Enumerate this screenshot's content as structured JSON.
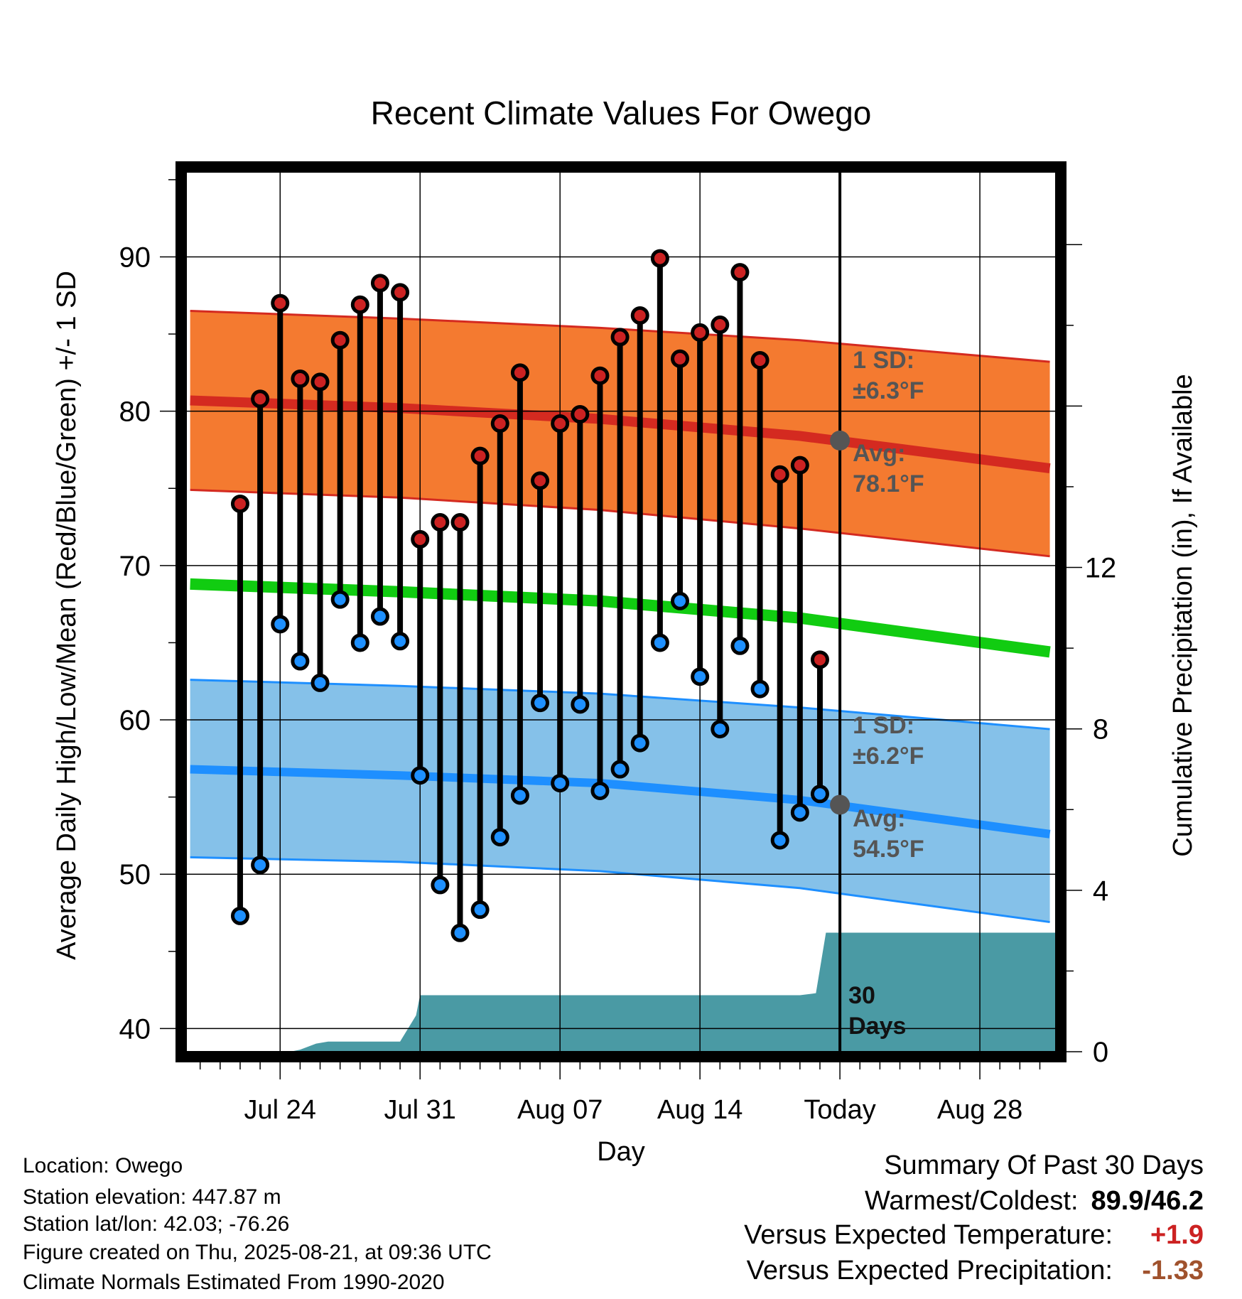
{
  "chart_data": {
    "type": "line",
    "title": "Recent Climate Values For Owego",
    "xlabel": "Day",
    "ylabel": "Average Daily High/Low/Mean (Red/Blue/Green) +/- 1 SD",
    "y2label": "Cumulative Precipitation (in), If Available",
    "ylim": [
      38.5,
      95.5
    ],
    "y2lim": [
      0,
      21.8
    ],
    "yticks": [
      40,
      50,
      60,
      70,
      80,
      90
    ],
    "y2ticks": [
      0,
      4,
      8,
      12
    ],
    "x_tick_labels": [
      "Jul 24",
      "Jul 31",
      "Aug 07",
      "Aug 14",
      "Today",
      "Aug 28"
    ],
    "x_tick_days": [
      24,
      31,
      38,
      45,
      52,
      59
    ],
    "xlim": [
      19.3,
      62.8
    ],
    "today_day": 52,
    "grid": true,
    "days": [
      "Jul 22",
      "Jul 23",
      "Jul 24",
      "Jul 25",
      "Jul 26",
      "Jul 27",
      "Jul 28",
      "Jul 29",
      "Jul 30",
      "Jul 31",
      "Aug 01",
      "Aug 02",
      "Aug 03",
      "Aug 04",
      "Aug 05",
      "Aug 06",
      "Aug 07",
      "Aug 08",
      "Aug 09",
      "Aug 10",
      "Aug 11",
      "Aug 12",
      "Aug 13",
      "Aug 14",
      "Aug 15",
      "Aug 16",
      "Aug 17",
      "Aug 18",
      "Aug 19",
      "Aug 20"
    ],
    "day_index": [
      22,
      23,
      24,
      25,
      26,
      27,
      28,
      29,
      30,
      31,
      32,
      33,
      34,
      35,
      36,
      37,
      38,
      39,
      40,
      41,
      42,
      43,
      44,
      45,
      46,
      47,
      48,
      49,
      50,
      51
    ],
    "series": [
      {
        "name": "High",
        "color": "#cc2222",
        "values": [
          74.0,
          80.8,
          87.0,
          82.1,
          81.9,
          84.6,
          86.9,
          88.3,
          87.7,
          71.7,
          72.8,
          72.8,
          77.1,
          79.2,
          82.5,
          75.5,
          79.2,
          79.8,
          82.3,
          84.8,
          86.2,
          89.9,
          83.4,
          85.1,
          85.6,
          89.0,
          83.3,
          75.9,
          76.5,
          63.9
        ]
      },
      {
        "name": "Low",
        "color": "#1e90ff",
        "values": [
          47.3,
          50.6,
          66.2,
          63.8,
          62.4,
          67.8,
          65.0,
          66.7,
          65.1,
          56.4,
          49.3,
          46.2,
          47.7,
          52.4,
          55.1,
          61.1,
          55.9,
          61.0,
          55.4,
          56.8,
          58.5,
          65.0,
          67.7,
          62.8,
          59.4,
          64.8,
          62.0,
          52.2,
          54.0,
          55.2
        ]
      }
    ],
    "normals": {
      "day_points": [
        19.5,
        30,
        40,
        50,
        62.5
      ],
      "high_mean": [
        80.7,
        80.2,
        79.5,
        78.4,
        76.3
      ],
      "high_upper": [
        86.5,
        86.0,
        85.4,
        84.6,
        83.2
      ],
      "high_lower": [
        74.9,
        74.4,
        73.6,
        72.4,
        70.6
      ],
      "mean": [
        68.8,
        68.3,
        67.7,
        66.6,
        64.4
      ],
      "low_mean": [
        56.8,
        56.4,
        55.9,
        54.8,
        52.6
      ],
      "low_upper": [
        62.6,
        62.2,
        61.7,
        60.8,
        59.4
      ],
      "low_lower": [
        51.1,
        50.8,
        50.2,
        49.1,
        46.9
      ]
    },
    "today_markers": {
      "high": 78.1,
      "low": 54.5
    },
    "precipitation": {
      "name": "Cumulative Precipitation",
      "color": "#4a9aa4",
      "days": [
        19.3,
        24.5,
        25.0,
        25.8,
        26.4,
        30.0,
        30.8,
        31.0,
        50.0,
        50.8,
        51.3,
        62.8
      ],
      "values": [
        0,
        0,
        0.05,
        0.2,
        0.25,
        0.25,
        0.9,
        1.4,
        1.4,
        1.45,
        2.95,
        2.95
      ]
    },
    "annotations": {
      "high_sd_label": "1 SD:",
      "high_sd_value": "±6.3°F",
      "high_avg_label": "Avg:",
      "high_avg_value": "78.1°F",
      "low_sd_label": "1 SD:",
      "low_sd_value": "±6.2°F",
      "low_avg_label": "Avg:",
      "low_avg_value": "54.5°F",
      "period_line1": "30",
      "period_line2": "Days"
    },
    "colors": {
      "high_band": "#f47a30",
      "high_edge": "#d42a20",
      "low_band": "#85c1e9",
      "low_edge": "#1e8fff",
      "mean_line": "#11cc11",
      "annotation_text": "#555555"
    }
  },
  "footer": {
    "location": "Location: Owego",
    "elevation": "Station elevation: 447.87 m",
    "latlon": "Station lat/lon: 42.03; -76.26",
    "created": "Figure created on Thu, 2025-08-21, at 09:36 UTC",
    "normals": "Climate Normals Estimated From 1990-2020"
  },
  "summary": {
    "title": "Summary Of Past 30 Days",
    "warmest_label": "Warmest/Coldest:",
    "warmest_value": "89.9/46.2",
    "temp_label": "Versus Expected Temperature:",
    "temp_value": "+1.9",
    "temp_color": "#cc2222",
    "precip_label": "Versus Expected Precipitation:",
    "precip_value": "-1.33",
    "precip_color": "#a0522d"
  }
}
